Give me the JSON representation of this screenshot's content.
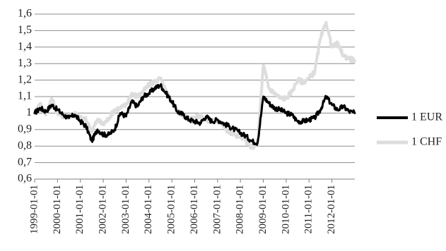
{
  "chart_data": {
    "type": "line",
    "title": "",
    "xlabel": "",
    "ylabel": "",
    "ylim": [
      0.6,
      1.6
    ],
    "y_ticks": [
      "0,6",
      "0,7",
      "0,8",
      "0,9",
      "1",
      "1,1",
      "1,2",
      "1,3",
      "1,4",
      "1,5",
      "1,6"
    ],
    "x_ticks": [
      "1999-01-01",
      "2000-01-01",
      "2001-01-01",
      "2002-01-01",
      "2003-01-01",
      "2004-01-01",
      "2005-01-01",
      "2006-01-01",
      "2007-01-01",
      "2008-01-01",
      "2009-01-01",
      "2010-01-01",
      "2011-01-01",
      "2012-01-01"
    ],
    "grid": "horizontal",
    "legend_position": "right",
    "series": [
      {
        "name": "1 EUR",
        "color": "#000000",
        "points": [
          [
            "1999-01-01",
            1.0
          ],
          [
            "1999-04-01",
            1.03
          ],
          [
            "1999-07-01",
            1.01
          ],
          [
            "1999-10-01",
            1.05
          ],
          [
            "2000-01-01",
            1.02
          ],
          [
            "2000-04-01",
            0.99
          ],
          [
            "2000-07-01",
            0.97
          ],
          [
            "2000-10-01",
            0.99
          ],
          [
            "2001-01-01",
            0.95
          ],
          [
            "2001-04-01",
            0.92
          ],
          [
            "2001-07-01",
            0.83
          ],
          [
            "2001-10-01",
            0.9
          ],
          [
            "2002-01-01",
            0.87
          ],
          [
            "2002-04-01",
            0.87
          ],
          [
            "2002-07-01",
            0.9
          ],
          [
            "2002-10-01",
            1.0
          ],
          [
            "2003-01-01",
            0.98
          ],
          [
            "2003-04-01",
            1.07
          ],
          [
            "2003-07-01",
            1.04
          ],
          [
            "2003-10-01",
            1.1
          ],
          [
            "2004-01-01",
            1.12
          ],
          [
            "2004-04-01",
            1.15
          ],
          [
            "2004-07-01",
            1.17
          ],
          [
            "2004-10-01",
            1.12
          ],
          [
            "2005-01-01",
            1.07
          ],
          [
            "2005-04-01",
            1.01
          ],
          [
            "2005-07-01",
            0.99
          ],
          [
            "2005-10-01",
            0.96
          ],
          [
            "2006-01-01",
            0.95
          ],
          [
            "2006-04-01",
            0.94
          ],
          [
            "2006-07-01",
            0.98
          ],
          [
            "2006-10-01",
            0.95
          ],
          [
            "2007-01-01",
            0.96
          ],
          [
            "2007-04-01",
            0.94
          ],
          [
            "2007-07-01",
            0.92
          ],
          [
            "2007-10-01",
            0.9
          ],
          [
            "2008-01-01",
            0.88
          ],
          [
            "2008-04-01",
            0.86
          ],
          [
            "2008-07-01",
            0.83
          ],
          [
            "2008-10-01",
            0.82
          ],
          [
            "2009-01-01",
            1.1
          ],
          [
            "2009-04-01",
            1.06
          ],
          [
            "2009-07-01",
            1.03
          ],
          [
            "2009-10-01",
            1.02
          ],
          [
            "2010-01-01",
            1.0
          ],
          [
            "2010-04-01",
            0.99
          ],
          [
            "2010-07-01",
            0.95
          ],
          [
            "2010-10-01",
            0.95
          ],
          [
            "2011-01-01",
            0.96
          ],
          [
            "2011-04-01",
            0.97
          ],
          [
            "2011-07-01",
            1.02
          ],
          [
            "2011-10-01",
            1.1
          ],
          [
            "2012-01-01",
            1.05
          ],
          [
            "2012-04-01",
            1.02
          ],
          [
            "2012-07-01",
            1.04
          ],
          [
            "2012-10-01",
            1.01
          ],
          [
            "2012-12-31",
            1.0
          ]
        ]
      },
      {
        "name": "1 CHF",
        "color": "#dddddd",
        "points": [
          [
            "1999-01-01",
            1.0
          ],
          [
            "1999-04-01",
            1.06
          ],
          [
            "1999-07-01",
            0.99
          ],
          [
            "1999-10-01",
            1.09
          ],
          [
            "2000-01-01",
            1.0
          ],
          [
            "2000-04-01",
            0.98
          ],
          [
            "2000-07-01",
            0.98
          ],
          [
            "2000-10-01",
            1.0
          ],
          [
            "2001-01-01",
            0.97
          ],
          [
            "2001-04-01",
            0.96
          ],
          [
            "2001-07-01",
            0.89
          ],
          [
            "2001-10-01",
            0.96
          ],
          [
            "2002-01-01",
            0.93
          ],
          [
            "2002-04-01",
            0.97
          ],
          [
            "2002-07-01",
            1.02
          ],
          [
            "2002-10-01",
            1.03
          ],
          [
            "2003-01-01",
            1.05
          ],
          [
            "2003-04-01",
            1.12
          ],
          [
            "2003-07-01",
            1.1
          ],
          [
            "2003-10-01",
            1.13
          ],
          [
            "2004-01-01",
            1.17
          ],
          [
            "2004-04-01",
            1.19
          ],
          [
            "2004-07-01",
            1.21
          ],
          [
            "2004-10-01",
            1.13
          ],
          [
            "2005-01-01",
            1.07
          ],
          [
            "2005-04-01",
            1.01
          ],
          [
            "2005-07-01",
            0.99
          ],
          [
            "2005-10-01",
            0.97
          ],
          [
            "2006-01-01",
            0.97
          ],
          [
            "2006-04-01",
            0.99
          ],
          [
            "2006-07-01",
            0.96
          ],
          [
            "2006-10-01",
            0.95
          ],
          [
            "2007-01-01",
            0.95
          ],
          [
            "2007-04-01",
            0.93
          ],
          [
            "2007-07-01",
            0.88
          ],
          [
            "2007-10-01",
            0.87
          ],
          [
            "2008-01-01",
            0.86
          ],
          [
            "2008-04-01",
            0.83
          ],
          [
            "2008-07-01",
            0.79
          ],
          [
            "2008-10-01",
            0.82
          ],
          [
            "2009-01-01",
            1.29
          ],
          [
            "2009-04-01",
            1.15
          ],
          [
            "2009-07-01",
            1.12
          ],
          [
            "2009-10-01",
            1.09
          ],
          [
            "2010-01-01",
            1.09
          ],
          [
            "2010-04-01",
            1.13
          ],
          [
            "2010-07-01",
            1.2
          ],
          [
            "2010-10-01",
            1.19
          ],
          [
            "2011-01-01",
            1.21
          ],
          [
            "2011-04-01",
            1.25
          ],
          [
            "2011-07-01",
            1.45
          ],
          [
            "2011-10-01",
            1.55
          ],
          [
            "2012-01-01",
            1.4
          ],
          [
            "2012-04-01",
            1.42
          ],
          [
            "2012-07-01",
            1.35
          ],
          [
            "2012-10-01",
            1.33
          ],
          [
            "2012-12-31",
            1.32
          ]
        ]
      }
    ]
  }
}
